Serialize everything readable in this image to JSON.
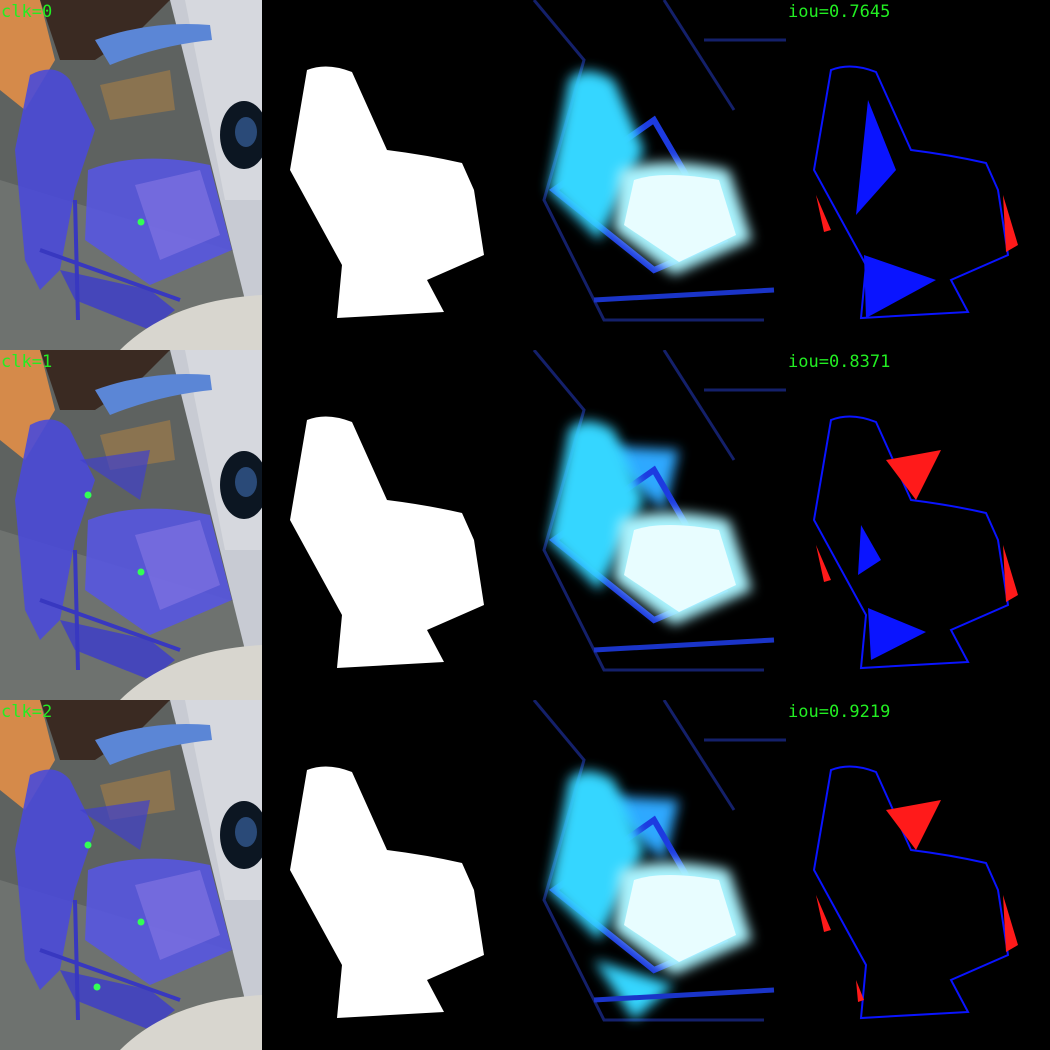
{
  "rows": [
    {
      "click_label": "clk=0",
      "iou_label": "iou=0.7645",
      "clicks": 1
    },
    {
      "click_label": "clk=1",
      "iou_label": "iou=0.8371",
      "clicks": 2
    },
    {
      "click_label": "clk=2",
      "iou_label": "iou=0.9219",
      "clicks": 3
    }
  ],
  "colors": {
    "label": "#22ee22",
    "click_point": "#33ff55",
    "overlay": "#4a4ad8",
    "mask": "#ffffff",
    "false_negative": "#0a14ff",
    "false_positive": "#ff1a1a",
    "probability_glow": "#35d6ff"
  }
}
